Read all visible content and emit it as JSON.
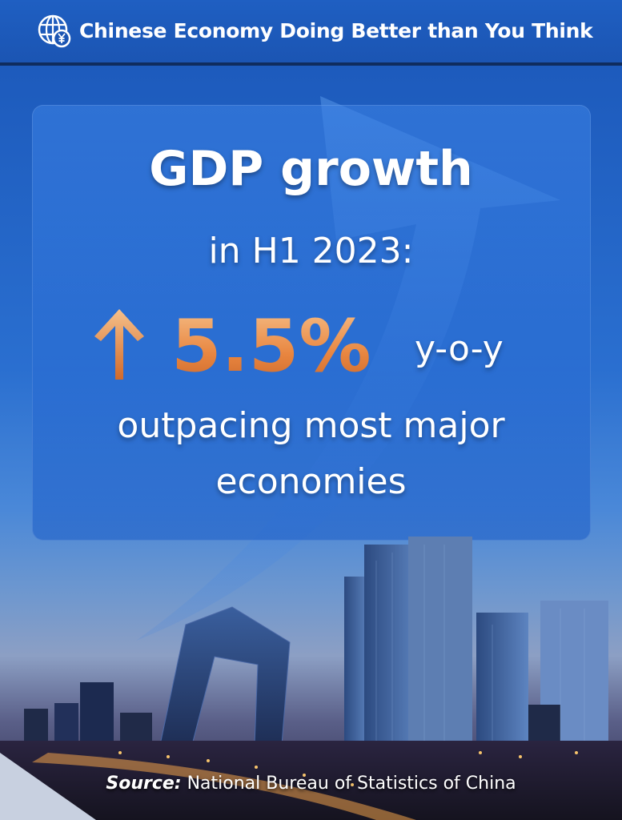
{
  "header": {
    "title": "Chinese Economy Doing Better than You Think",
    "icon": "globe-yuan-icon"
  },
  "headline": {
    "line1": "GDP growth",
    "line2": "in H1 2023:",
    "growth_value": "5.5%",
    "growth_unit": "y-o-y",
    "line4": "outpacing most major",
    "line5": "economies",
    "arrow_icon": "up-arrow-icon"
  },
  "footer": {
    "source_label": "Source:",
    "source_text": " National Bureau of Statistics of China"
  },
  "colors": {
    "header_bg": "#1b55b3",
    "accent_orange": "#e8853f",
    "text": "#ffffff"
  }
}
